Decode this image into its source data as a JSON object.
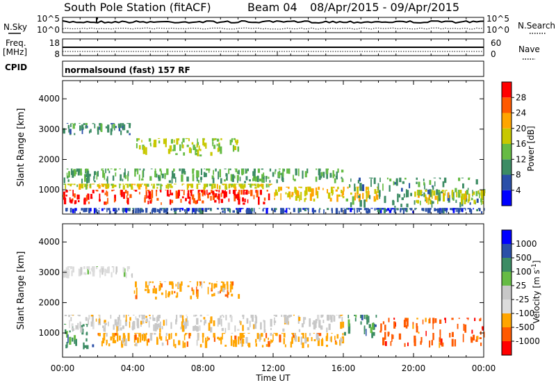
{
  "header": {
    "station": "South Pole Station (fitACF)",
    "beam": "Beam 04",
    "date_range": "08/Apr/2015 - 09/Apr/2015"
  },
  "top_panels": {
    "nsky_label": "N.Sky",
    "nsky_ticks": [
      "10^5",
      "10^0"
    ],
    "nsearch_label": "N.Search",
    "freq_label_1": "Freq.",
    "freq_label_2": "[MHz]",
    "freq_ticks": [
      "18",
      "8"
    ],
    "nave_label": "Nave",
    "nave_ticks": [
      "60",
      "0"
    ],
    "cpid_label": "CPID",
    "cpid_value": "normalsound (fast) 157 RF"
  },
  "colors": {
    "power": [
      "#0000ff",
      "#2a4fa8",
      "#3c8c64",
      "#66bb44",
      "#c8c800",
      "#ffa500",
      "#ff5a00",
      "#ff0000"
    ],
    "velocity": [
      "#ff0000",
      "#ff5a00",
      "#ffa500",
      "#c8c8c8",
      "#dcdcdc",
      "#66bb44",
      "#3c8c64",
      "#2a4fa8",
      "#0000ff"
    ]
  },
  "chart_data": [
    {
      "type": "heatmap",
      "title": "",
      "xlabel": "",
      "ylabel": "Slant Range [km]",
      "ylim": [
        200,
        4600
      ],
      "x_ticks": [
        "00:00",
        "04:00",
        "08:00",
        "12:00",
        "16:00",
        "20:00",
        "00:00"
      ],
      "y_ticks": [
        1000,
        2000,
        3000,
        4000
      ],
      "colorbar_label": "Power [dB]",
      "colorbar_ticks": [
        4,
        8,
        12,
        16,
        20,
        24,
        28
      ],
      "colorbar_range": [
        0,
        32
      ],
      "bands": [
        {
          "t0": 0,
          "t1": 12,
          "r0": 500,
          "r1": 1000,
          "value": 28
        },
        {
          "t0": 0,
          "t1": 12,
          "r0": 1000,
          "r1": 1200,
          "value": 18
        },
        {
          "t0": 0,
          "t1": 16,
          "r0": 1200,
          "r1": 1700,
          "value": 12
        },
        {
          "t0": 12,
          "t1": 18,
          "r0": 600,
          "r1": 1100,
          "value": 20
        },
        {
          "t0": 16,
          "t1": 24,
          "r0": 400,
          "r1": 1400,
          "value": 10
        },
        {
          "t0": 20,
          "t1": 24,
          "r0": 500,
          "r1": 1000,
          "value": 18
        },
        {
          "t0": 4,
          "t1": 10,
          "r0": 2100,
          "r1": 2700,
          "value": 16
        },
        {
          "t0": 0,
          "t1": 4,
          "r0": 2800,
          "r1": 3200,
          "value": 10
        },
        {
          "t0": 0,
          "t1": 24,
          "r0": 200,
          "r1": 400,
          "value": 6
        }
      ]
    },
    {
      "type": "heatmap",
      "title": "",
      "xlabel": "Time UT",
      "ylabel": "Slant Range [km]",
      "ylim": [
        200,
        4600
      ],
      "x_ticks": [
        "00:00",
        "04:00",
        "08:00",
        "12:00",
        "16:00",
        "20:00",
        "00:00"
      ],
      "y_ticks": [
        1000,
        2000,
        3000,
        4000
      ],
      "colorbar_label": "Velocity [m s^-1]",
      "colorbar_ticks": [
        "1000",
        "500",
        "100",
        "25",
        "-25",
        "-100",
        "-500",
        "-1000"
      ],
      "bands": [
        {
          "t0": 0,
          "t1": 2,
          "r0": 400,
          "r1": 1300,
          "value": 100
        },
        {
          "t0": 2,
          "t1": 16,
          "r0": 500,
          "r1": 1000,
          "value": -100
        },
        {
          "t0": 0,
          "t1": 16,
          "r0": 1000,
          "r1": 1600,
          "value": 25
        },
        {
          "t0": 16,
          "t1": 18,
          "r0": 800,
          "r1": 1600,
          "value": 100
        },
        {
          "t0": 18,
          "t1": 24,
          "r0": 500,
          "r1": 1500,
          "value": -500
        },
        {
          "t0": 4,
          "t1": 10,
          "r0": 2100,
          "r1": 2700,
          "value": -100
        },
        {
          "t0": 0,
          "t1": 4,
          "r0": 2800,
          "r1": 3200,
          "value": -25
        }
      ]
    }
  ]
}
